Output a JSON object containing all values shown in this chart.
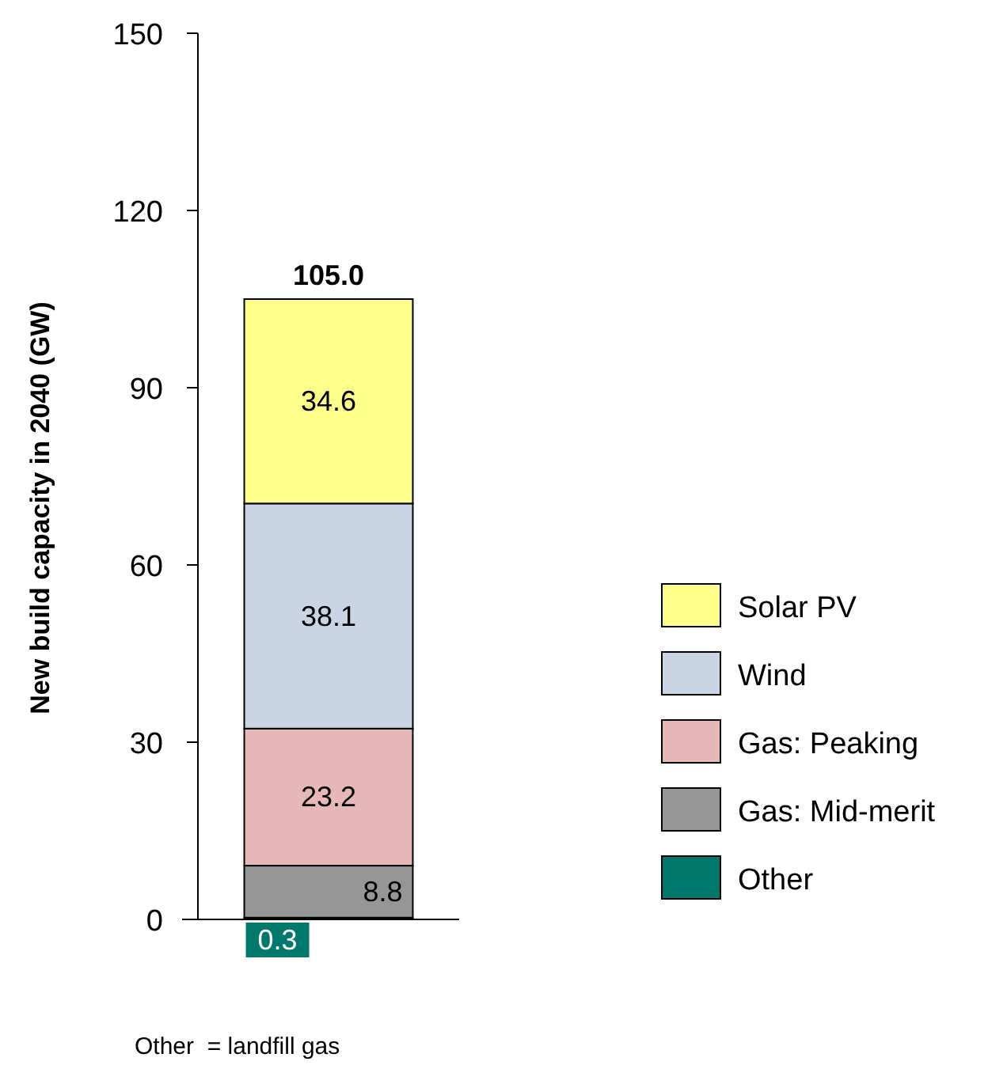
{
  "chart_data": {
    "type": "bar",
    "stacked": true,
    "ylabel": "New build capacity in 2040 (GW)",
    "categories": [
      null
    ],
    "tick_labels": "y",
    "series": [
      {
        "name": "Other",
        "color": "#00786c",
        "values": [
          0.3
        ]
      },
      {
        "name": "Gas: Mid-merit",
        "color": "#969696",
        "values": [
          8.8
        ]
      },
      {
        "name": "Gas: Peaking",
        "color": "#e6b9b8",
        "values": [
          23.2
        ]
      },
      {
        "name": "Wind",
        "color": "#c9d4e5",
        "values": [
          38.1
        ]
      },
      {
        "name": "Solar PV",
        "color": "#ffff8c",
        "values": [
          34.6
        ]
      }
    ],
    "ylim": [
      0,
      150
    ],
    "yticks": [
      0,
      30,
      60,
      90,
      120,
      150
    ],
    "data_labels": true,
    "totals": [
      "105.0"
    ],
    "legend": "right",
    "grid": false,
    "annotations": [
      "Other  = landfill gas"
    ]
  }
}
